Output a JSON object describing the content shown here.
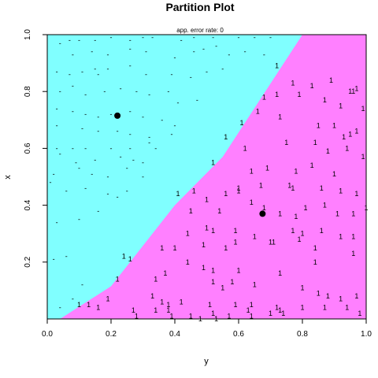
{
  "chart_data": {
    "type": "scatter",
    "title": "Partition Plot",
    "subtitle": "app. error rate: 0",
    "xlabel": "y",
    "ylabel": "x",
    "xlim": [
      0,
      1
    ],
    "ylim": [
      0,
      1
    ],
    "xticks": [
      "0.0",
      "0.2",
      "0.4",
      "0.6",
      "0.8",
      "1.0"
    ],
    "yticks": [
      "0.2",
      "0.4",
      "0.6",
      "0.8",
      "1.0"
    ],
    "grid": false,
    "regions": [
      {
        "class": "-",
        "color": "#80FFFF"
      },
      {
        "class": "1",
        "color": "#FF80FF"
      }
    ],
    "boundary": [
      [
        0.0,
        0.0
      ],
      [
        0.04,
        0.0
      ],
      [
        0.2,
        0.115
      ],
      [
        0.4,
        0.4
      ],
      [
        0.55,
        0.57
      ],
      [
        0.8,
        1.0
      ]
    ],
    "centers": [
      {
        "class": "-",
        "x": 0.22,
        "y": 0.715
      },
      {
        "class": "1",
        "x": 0.675,
        "y": 0.37
      }
    ],
    "series": [
      {
        "name": "-",
        "points": [
          [
            0.04,
            0.97
          ],
          [
            0.07,
            0.98
          ],
          [
            0.1,
            0.98
          ],
          [
            0.15,
            0.98
          ],
          [
            0.2,
            0.99
          ],
          [
            0.26,
            0.98
          ],
          [
            0.3,
            0.99
          ],
          [
            0.33,
            0.99
          ],
          [
            0.42,
            0.98
          ],
          [
            0.46,
            0.99
          ],
          [
            0.52,
            0.99
          ],
          [
            0.6,
            0.99
          ],
          [
            0.65,
            0.99
          ],
          [
            0.7,
            0.99
          ],
          [
            0.08,
            0.93
          ],
          [
            0.14,
            0.94
          ],
          [
            0.19,
            0.93
          ],
          [
            0.26,
            0.95
          ],
          [
            0.31,
            0.94
          ],
          [
            0.4,
            0.92
          ],
          [
            0.46,
            0.94
          ],
          [
            0.49,
            0.95
          ],
          [
            0.53,
            0.96
          ],
          [
            0.57,
            0.93
          ],
          [
            0.62,
            0.94
          ],
          [
            0.68,
            0.93
          ],
          [
            0.03,
            0.87
          ],
          [
            0.07,
            0.86
          ],
          [
            0.11,
            0.87
          ],
          [
            0.15,
            0.88
          ],
          [
            0.16,
            0.86
          ],
          [
            0.19,
            0.88
          ],
          [
            0.26,
            0.89
          ],
          [
            0.31,
            0.86
          ],
          [
            0.39,
            0.86
          ],
          [
            0.45,
            0.85
          ],
          [
            0.5,
            0.87
          ],
          [
            0.55,
            0.88
          ],
          [
            0.04,
            0.8
          ],
          [
            0.08,
            0.82
          ],
          [
            0.12,
            0.79
          ],
          [
            0.18,
            0.8
          ],
          [
            0.23,
            0.81
          ],
          [
            0.28,
            0.8
          ],
          [
            0.32,
            0.79
          ],
          [
            0.38,
            0.8
          ],
          [
            0.41,
            0.76
          ],
          [
            0.47,
            0.77
          ],
          [
            0.03,
            0.74
          ],
          [
            0.08,
            0.73
          ],
          [
            0.12,
            0.72
          ],
          [
            0.16,
            0.71
          ],
          [
            0.2,
            0.72
          ],
          [
            0.26,
            0.73
          ],
          [
            0.3,
            0.71
          ],
          [
            0.36,
            0.7
          ],
          [
            0.4,
            0.68
          ],
          [
            0.03,
            0.68
          ],
          [
            0.11,
            0.67
          ],
          [
            0.16,
            0.66
          ],
          [
            0.22,
            0.66
          ],
          [
            0.26,
            0.65
          ],
          [
            0.32,
            0.64
          ],
          [
            0.39,
            0.65
          ],
          [
            0.34,
            0.6
          ],
          [
            0.03,
            0.6
          ],
          [
            0.08,
            0.6
          ],
          [
            0.12,
            0.6
          ],
          [
            0.2,
            0.6
          ],
          [
            0.26,
            0.6
          ],
          [
            0.32,
            0.62
          ],
          [
            0.04,
            0.58
          ],
          [
            0.09,
            0.55
          ],
          [
            0.15,
            0.56
          ],
          [
            0.23,
            0.57
          ],
          [
            0.27,
            0.56
          ],
          [
            0.3,
            0.55
          ],
          [
            0.02,
            0.51
          ],
          [
            0.1,
            0.53
          ],
          [
            0.14,
            0.51
          ],
          [
            0.19,
            0.5
          ],
          [
            0.25,
            0.53
          ],
          [
            0.3,
            0.5
          ],
          [
            0.01,
            0.48
          ],
          [
            0.06,
            0.45
          ],
          [
            0.12,
            0.46
          ],
          [
            0.19,
            0.44
          ],
          [
            0.22,
            0.43
          ],
          [
            0.25,
            0.45
          ],
          [
            0.16,
            0.38
          ],
          [
            0.03,
            0.34
          ],
          [
            0.1,
            0.35
          ],
          [
            0.06,
            0.22
          ],
          [
            0.02,
            0.21
          ],
          [
            0.11,
            0.12
          ],
          [
            0.08,
            0.07
          ],
          [
            0.04,
            0.04
          ]
        ]
      },
      {
        "name": "1",
        "points": [
          [
            0.72,
            0.89
          ],
          [
            0.77,
            0.83
          ],
          [
            0.83,
            0.82
          ],
          [
            0.89,
            0.84
          ],
          [
            0.95,
            0.8
          ],
          [
            0.96,
            0.8
          ],
          [
            0.97,
            0.81
          ],
          [
            0.68,
            0.78
          ],
          [
            0.72,
            0.79
          ],
          [
            0.79,
            0.79
          ],
          [
            0.87,
            0.77
          ],
          [
            0.92,
            0.75
          ],
          [
            0.99,
            0.74
          ],
          [
            0.61,
            0.69
          ],
          [
            0.66,
            0.73
          ],
          [
            0.73,
            0.71
          ],
          [
            0.85,
            0.68
          ],
          [
            0.9,
            0.68
          ],
          [
            0.93,
            0.64
          ],
          [
            0.95,
            0.65
          ],
          [
            0.97,
            0.66
          ],
          [
            0.56,
            0.64
          ],
          [
            0.62,
            0.6
          ],
          [
            0.75,
            0.62
          ],
          [
            0.84,
            0.62
          ],
          [
            0.88,
            0.59
          ],
          [
            0.94,
            0.6
          ],
          [
            0.99,
            0.57
          ],
          [
            0.52,
            0.55
          ],
          [
            0.64,
            0.52
          ],
          [
            0.69,
            0.53
          ],
          [
            0.78,
            0.52
          ],
          [
            0.83,
            0.54
          ],
          [
            0.9,
            0.51
          ],
          [
            0.41,
            0.44
          ],
          [
            0.46,
            0.45
          ],
          [
            0.56,
            0.44
          ],
          [
            0.6,
            0.46
          ],
          [
            0.67,
            0.47
          ],
          [
            0.76,
            0.47
          ],
          [
            0.77,
            0.46
          ],
          [
            0.86,
            0.46
          ],
          [
            0.92,
            0.45
          ],
          [
            0.97,
            0.44
          ],
          [
            0.45,
            0.38
          ],
          [
            0.5,
            0.42
          ],
          [
            0.54,
            0.38
          ],
          [
            0.6,
            0.45
          ],
          [
            0.64,
            0.41
          ],
          [
            0.68,
            0.39
          ],
          [
            0.73,
            0.37
          ],
          [
            0.78,
            0.36
          ],
          [
            0.81,
            0.39
          ],
          [
            0.87,
            0.4
          ],
          [
            0.91,
            0.37
          ],
          [
            0.96,
            0.37
          ],
          [
            1.0,
            0.39
          ],
          [
            0.44,
            0.3
          ],
          [
            0.5,
            0.32
          ],
          [
            0.52,
            0.31
          ],
          [
            0.59,
            0.31
          ],
          [
            0.65,
            0.29
          ],
          [
            0.71,
            0.27
          ],
          [
            0.77,
            0.31
          ],
          [
            0.8,
            0.3
          ],
          [
            0.86,
            0.31
          ],
          [
            0.92,
            0.29
          ],
          [
            0.96,
            0.29
          ],
          [
            0.36,
            0.25
          ],
          [
            0.4,
            0.25
          ],
          [
            0.49,
            0.26
          ],
          [
            0.56,
            0.25
          ],
          [
            0.59,
            0.27
          ],
          [
            0.7,
            0.27
          ],
          [
            0.79,
            0.28
          ],
          [
            0.84,
            0.25
          ],
          [
            0.96,
            0.23
          ],
          [
            0.26,
            0.21
          ],
          [
            0.24,
            0.22
          ],
          [
            0.44,
            0.2
          ],
          [
            0.49,
            0.18
          ],
          [
            0.52,
            0.17
          ],
          [
            0.6,
            0.17
          ],
          [
            0.73,
            0.16
          ],
          [
            0.84,
            0.2
          ],
          [
            0.22,
            0.14
          ],
          [
            0.34,
            0.14
          ],
          [
            0.37,
            0.16
          ],
          [
            0.52,
            0.13
          ],
          [
            0.55,
            0.11
          ],
          [
            0.58,
            0.13
          ],
          [
            0.65,
            0.12
          ],
          [
            0.8,
            0.11
          ],
          [
            0.85,
            0.09
          ],
          [
            0.88,
            0.08
          ],
          [
            0.92,
            0.07
          ],
          [
            0.97,
            0.08
          ],
          [
            0.19,
            0.07
          ],
          [
            0.33,
            0.08
          ],
          [
            0.36,
            0.06
          ],
          [
            0.38,
            0.05
          ],
          [
            0.42,
            0.06
          ],
          [
            0.51,
            0.05
          ],
          [
            0.59,
            0.05
          ],
          [
            0.64,
            0.05
          ],
          [
            0.72,
            0.04
          ],
          [
            0.73,
            0.03
          ],
          [
            0.8,
            0.04
          ],
          [
            0.87,
            0.04
          ],
          [
            0.13,
            0.05
          ],
          [
            0.16,
            0.04
          ],
          [
            0.27,
            0.03
          ],
          [
            0.34,
            0.03
          ],
          [
            0.38,
            0.03
          ],
          [
            0.45,
            0.01
          ],
          [
            0.52,
            0.02
          ],
          [
            0.57,
            0.01
          ],
          [
            0.64,
            0.01
          ],
          [
            0.7,
            0.02
          ],
          [
            0.74,
            0.02
          ],
          [
            0.94,
            0.04
          ],
          [
            0.98,
            0.02
          ],
          [
            0.1,
            0.05
          ],
          [
            0.28,
            0.01
          ],
          [
            0.39,
            0.01
          ],
          [
            0.48,
            0.0
          ],
          [
            0.53,
            0.0
          ],
          [
            0.63,
            0.03
          ]
        ]
      }
    ]
  }
}
